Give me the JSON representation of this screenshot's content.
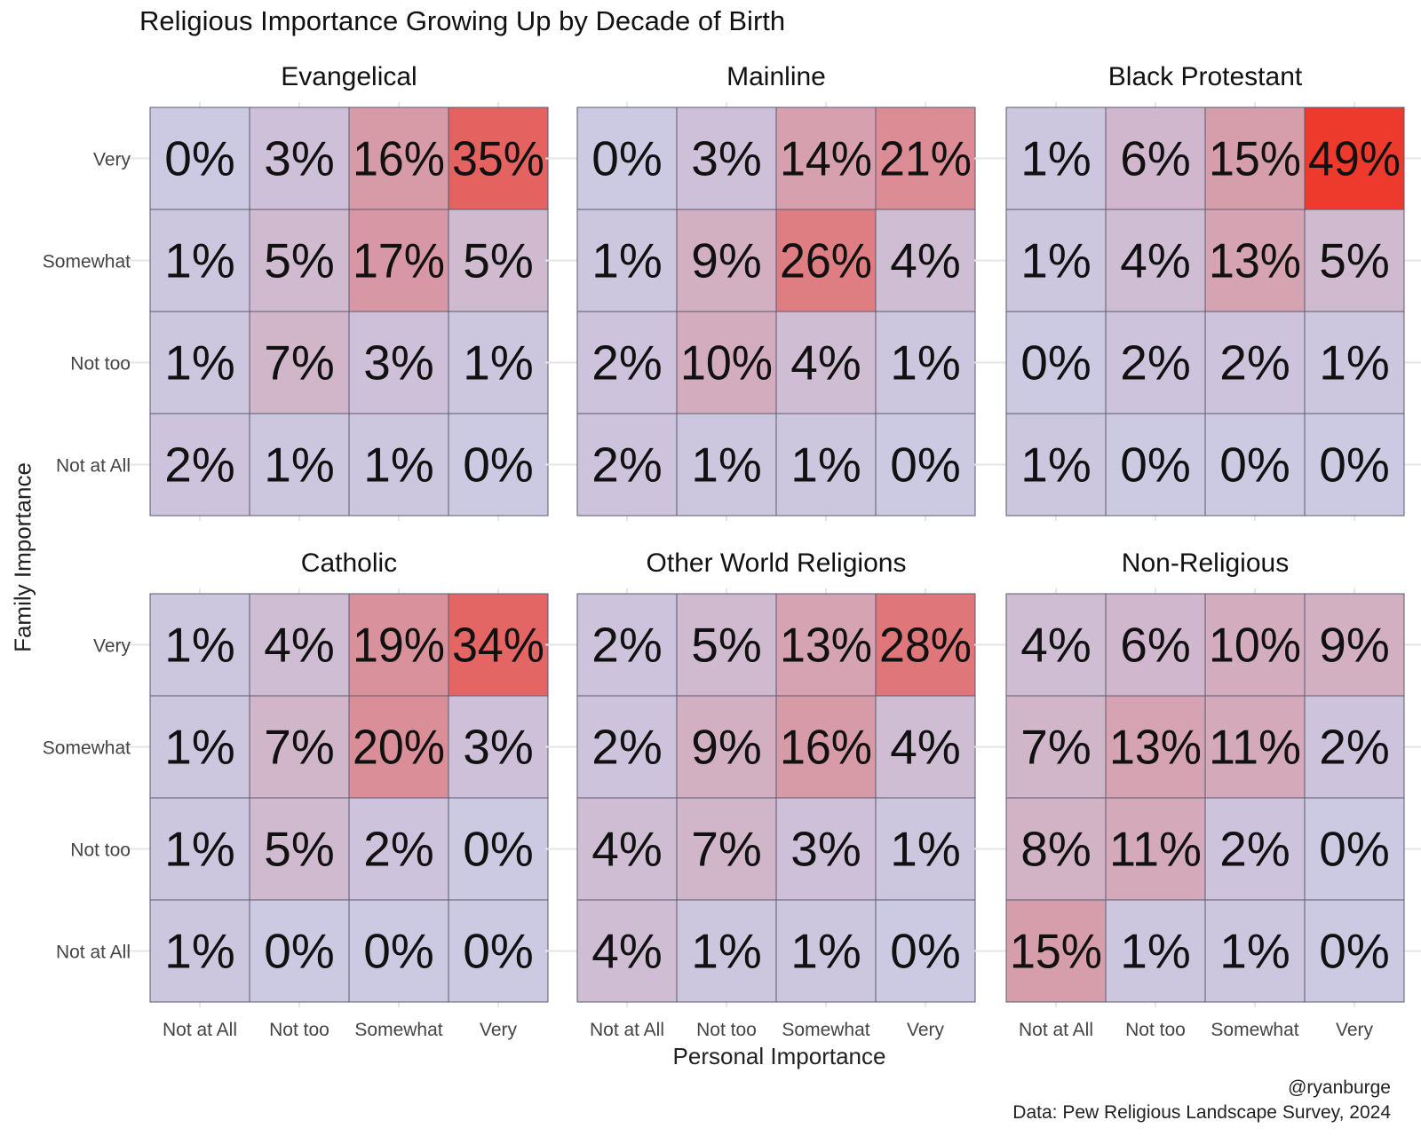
{
  "title": "Religious Importance Growing Up by Decade of Birth",
  "xlabel": "Personal Importance",
  "ylabel": "Family Importance",
  "credit_handle": "@ryanburge",
  "credit_source": "Data: Pew Religious Landscape Survey, 2024",
  "colors": {
    "low": "#ccc9e3",
    "high": "#ee3a2c",
    "border": "#5a5a6e",
    "gridline": "#e6e6e6"
  },
  "chart_data": {
    "type": "heatmap",
    "title": "Religious Importance Growing Up by Decade of Birth",
    "xlabel": "Personal Importance",
    "ylabel": "Family Importance",
    "x_categories": [
      "Not at All",
      "Not too",
      "Somewhat",
      "Very"
    ],
    "y_categories": [
      "Very",
      "Somewhat",
      "Not too",
      "Not at All"
    ],
    "value_unit": "%",
    "color_scale": {
      "min": 0,
      "max": 49
    },
    "panels": [
      {
        "name": "Evangelical",
        "values": [
          [
            0,
            3,
            16,
            35
          ],
          [
            1,
            5,
            17,
            5
          ],
          [
            1,
            7,
            3,
            1
          ],
          [
            2,
            1,
            1,
            0
          ]
        ],
        "labels": [
          [
            "0%",
            "3%",
            "16%",
            "35%"
          ],
          [
            "1%",
            "5%",
            "17%",
            "5%"
          ],
          [
            "1%",
            "7%",
            "3%",
            "1%"
          ],
          [
            "2%",
            "1%",
            "1%",
            "0%"
          ]
        ]
      },
      {
        "name": "Mainline",
        "values": [
          [
            0,
            3,
            14,
            21
          ],
          [
            1,
            9,
            26,
            4
          ],
          [
            2,
            10,
            4,
            1
          ],
          [
            2,
            1,
            1,
            0
          ]
        ],
        "labels": [
          [
            "0%",
            "3%",
            "14%",
            "21%"
          ],
          [
            "1%",
            "9%",
            "26%",
            "4%"
          ],
          [
            "2%",
            "10%",
            "4%",
            "1%"
          ],
          [
            "2%",
            "1%",
            "1%",
            "0%"
          ]
        ]
      },
      {
        "name": "Black Protestant",
        "values": [
          [
            1,
            6,
            15,
            49
          ],
          [
            1,
            4,
            13,
            5
          ],
          [
            0,
            2,
            2,
            1
          ],
          [
            1,
            0,
            0,
            0
          ]
        ],
        "labels": [
          [
            "1%",
            "6%",
            "15%",
            "49%"
          ],
          [
            "1%",
            "4%",
            "13%",
            "5%"
          ],
          [
            "0%",
            "2%",
            "2%",
            "1%"
          ],
          [
            "1%",
            "0%",
            "0%",
            "0%"
          ]
        ]
      },
      {
        "name": "Catholic",
        "values": [
          [
            1,
            4,
            19,
            34
          ],
          [
            1,
            7,
            20,
            3
          ],
          [
            1,
            5,
            2,
            0
          ],
          [
            1,
            0,
            0,
            0
          ]
        ],
        "labels": [
          [
            "1%",
            "4%",
            "19%",
            "34%"
          ],
          [
            "1%",
            "7%",
            "20%",
            "3%"
          ],
          [
            "1%",
            "5%",
            "2%",
            "0%"
          ],
          [
            "1%",
            "0%",
            "0%",
            "0%"
          ]
        ]
      },
      {
        "name": "Other World Religions",
        "values": [
          [
            2,
            5,
            13,
            28
          ],
          [
            2,
            9,
            16,
            4
          ],
          [
            4,
            7,
            3,
            1
          ],
          [
            4,
            1,
            1,
            0
          ]
        ],
        "labels": [
          [
            "2%",
            "5%",
            "13%",
            "28%"
          ],
          [
            "2%",
            "9%",
            "16%",
            "4%"
          ],
          [
            "4%",
            "7%",
            "3%",
            "1%"
          ],
          [
            "4%",
            "1%",
            "1%",
            "0%"
          ]
        ]
      },
      {
        "name": "Non-Religious",
        "values": [
          [
            4,
            6,
            10,
            9
          ],
          [
            7,
            13,
            11,
            2
          ],
          [
            8,
            11,
            2,
            0
          ],
          [
            15,
            1,
            1,
            0
          ]
        ],
        "labels": [
          [
            "4%",
            "6%",
            "10%",
            "9%"
          ],
          [
            "7%",
            "13%",
            "11%",
            "2%"
          ],
          [
            "8%",
            "11%",
            "2%",
            "0%"
          ],
          [
            "15%",
            "1%",
            "1%",
            "0%"
          ]
        ]
      }
    ]
  }
}
